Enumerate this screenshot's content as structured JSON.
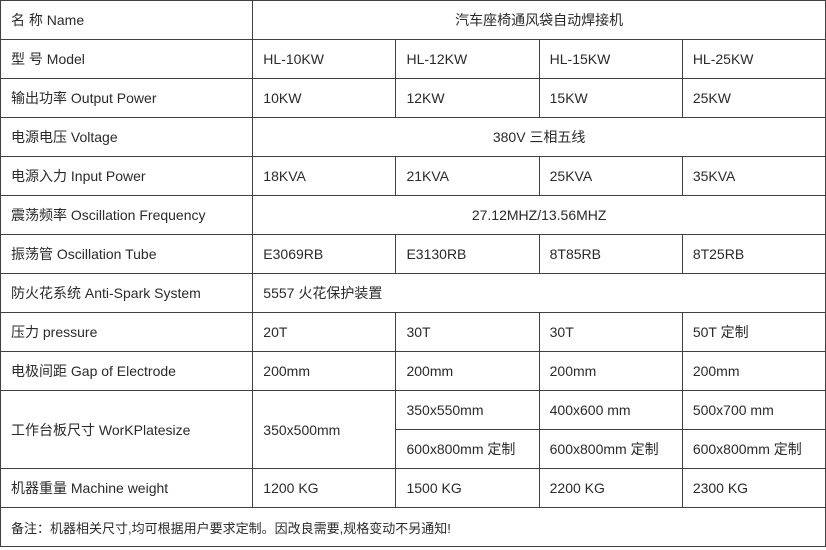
{
  "table": {
    "name_label": "名 称 Name",
    "name_value": "汽车座椅通风袋自动焊接机",
    "model_label": "型 号 Model",
    "model_values": [
      "HL-10KW",
      "HL-12KW",
      "HL-15KW",
      "HL-25KW"
    ],
    "output_power_label": "输出功率 Output Power",
    "output_power_values": [
      "10KW",
      "12KW",
      "15KW",
      "25KW"
    ],
    "voltage_label": "电源电压 Voltage",
    "voltage_value": "380V 三相五线",
    "input_power_label": "电源入力 Input Power",
    "input_power_values": [
      "18KVA",
      "21KVA",
      "25KVA",
      "35KVA"
    ],
    "osc_freq_label": "震荡频率 Oscillation Frequency",
    "osc_freq_value": "27.12MHZ/13.56MHZ",
    "osc_tube_label": "振荡管  Oscillation Tube",
    "osc_tube_values": [
      "E3069RB",
      "E3130RB",
      "8T85RB",
      "8T25RB"
    ],
    "antispark_label": "防火花系统 Anti-Spark System",
    "antispark_value": "5557 火花保护装置",
    "pressure_label": "压力  pressure",
    "pressure_values": [
      "20T",
      "30T",
      "30T",
      "50T 定制"
    ],
    "gap_label": "电极间距  Gap of Electrode",
    "gap_values": [
      "200mm",
      "200mm",
      "200mm",
      "200mm"
    ],
    "plate_label": "工作台板尺寸 WorKPlatesize",
    "plate_row1": [
      "350x500mm",
      "350x550mm",
      "400x600 mm",
      "500x700 mm"
    ],
    "plate_row2": [
      "600x800mm 定制",
      "600x800mm 定制",
      "600x800mm 定制"
    ],
    "weight_label": "机器重量  Machine weight",
    "weight_values": [
      "1200 KG",
      "1500 KG",
      "2200 KG",
      "2300 KG"
    ],
    "note": "备注：机器相关尺寸,均可根据用户要求定制。因改良需要,规格变动不另通知!"
  },
  "style": {
    "border_color": "#404040",
    "text_color": "#2a2a2a",
    "font_size_pt": 10.5,
    "background": "#ffffff"
  }
}
